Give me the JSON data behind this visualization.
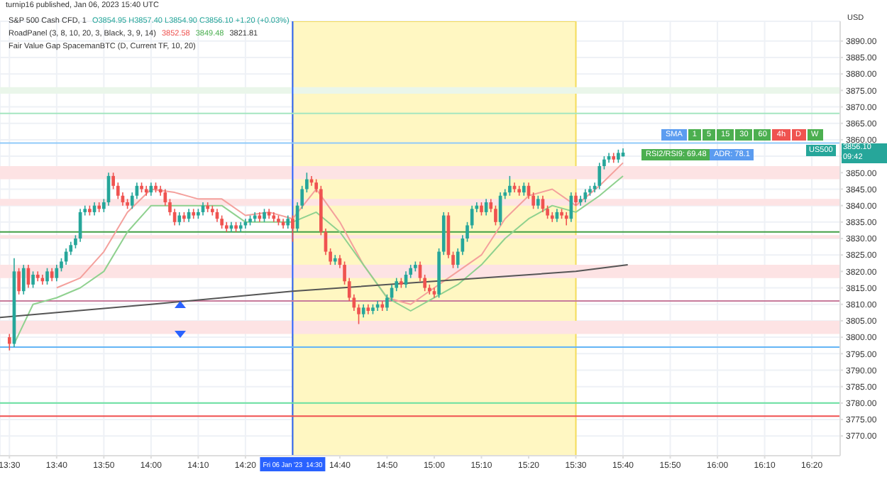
{
  "chart_data": {
    "type": "candlestick",
    "title": "S&P 500 Cash CFD, 1",
    "ylabel": "USD",
    "annotations": [
      "turnip16 published, Jan 06, 2023 15:40 UTC",
      "O3854.95 H3857.40 L3854.90 C3856.10 +1.20 (+0.03%)",
      "RoadPanel (3, 8, 10, 20, 3, Black, 3, 9, 14)",
      "3852.58",
      "3849.48",
      "3821.81",
      "Fair Value Gap SpacemanBTC (D, Current TF, 10, 20)",
      "SMA 1 5 15 30 60 4h D W",
      "RSI2/RSI9: 69.48",
      "ADR: 78.1",
      "US500",
      "3856.10",
      "09:42"
    ],
    "x": [
      "2023-01-06T13:30",
      "2023-01-06T13:31",
      "2023-01-06T13:32",
      "2023-01-06T13:33",
      "2023-01-06T13:34",
      "2023-01-06T13:35",
      "2023-01-06T13:36",
      "2023-01-06T13:37",
      "2023-01-06T13:38",
      "2023-01-06T13:39",
      "2023-01-06T13:40",
      "2023-01-06T13:41",
      "2023-01-06T13:42",
      "2023-01-06T13:43",
      "2023-01-06T13:44",
      "2023-01-06T13:45",
      "2023-01-06T13:46",
      "2023-01-06T13:47",
      "2023-01-06T13:48",
      "2023-01-06T13:49",
      "2023-01-06T13:50",
      "2023-01-06T13:51",
      "2023-01-06T13:52",
      "2023-01-06T13:53",
      "2023-01-06T13:54",
      "2023-01-06T13:55",
      "2023-01-06T13:56",
      "2023-01-06T13:57",
      "2023-01-06T13:58",
      "2023-01-06T13:59",
      "2023-01-06T14:00",
      "2023-01-06T14:01",
      "2023-01-06T14:02",
      "2023-01-06T14:03",
      "2023-01-06T14:04",
      "2023-01-06T14:05",
      "2023-01-06T14:06",
      "2023-01-06T14:07",
      "2023-01-06T14:08",
      "2023-01-06T14:09",
      "2023-01-06T14:10",
      "2023-01-06T14:11",
      "2023-01-06T14:12",
      "2023-01-06T14:13",
      "2023-01-06T14:14",
      "2023-01-06T14:15",
      "2023-01-06T14:16",
      "2023-01-06T14:17",
      "2023-01-06T14:18",
      "2023-01-06T14:19",
      "2023-01-06T14:20",
      "2023-01-06T14:21",
      "2023-01-06T14:22",
      "2023-01-06T14:23",
      "2023-01-06T14:24",
      "2023-01-06T14:25",
      "2023-01-06T14:26",
      "2023-01-06T14:27",
      "2023-01-06T14:28",
      "2023-01-06T14:29",
      "2023-01-06T14:30",
      "2023-01-06T14:31",
      "2023-01-06T14:32",
      "2023-01-06T14:33",
      "2023-01-06T14:34",
      "2023-01-06T14:35",
      "2023-01-06T14:36",
      "2023-01-06T14:37",
      "2023-01-06T14:38",
      "2023-01-06T14:39",
      "2023-01-06T14:40",
      "2023-01-06T14:41",
      "2023-01-06T14:42",
      "2023-01-06T14:43",
      "2023-01-06T14:44",
      "2023-01-06T14:45",
      "2023-01-06T14:46",
      "2023-01-06T14:47",
      "2023-01-06T14:48",
      "2023-01-06T14:49",
      "2023-01-06T14:50",
      "2023-01-06T14:51",
      "2023-01-06T14:52",
      "2023-01-06T14:53",
      "2023-01-06T14:54",
      "2023-01-06T14:55",
      "2023-01-06T14:56",
      "2023-01-06T14:57",
      "2023-01-06T14:58",
      "2023-01-06T14:59",
      "2023-01-06T15:00",
      "2023-01-06T15:01",
      "2023-01-06T15:02",
      "2023-01-06T15:03",
      "2023-01-06T15:04",
      "2023-01-06T15:05",
      "2023-01-06T15:06",
      "2023-01-06T15:07",
      "2023-01-06T15:08",
      "2023-01-06T15:09",
      "2023-01-06T15:10",
      "2023-01-06T15:11",
      "2023-01-06T15:12",
      "2023-01-06T15:13",
      "2023-01-06T15:14",
      "2023-01-06T15:15",
      "2023-01-06T15:16",
      "2023-01-06T15:17",
      "2023-01-06T15:18",
      "2023-01-06T15:19",
      "2023-01-06T15:20",
      "2023-01-06T15:21",
      "2023-01-06T15:22",
      "2023-01-06T15:23",
      "2023-01-06T15:24",
      "2023-01-06T15:25",
      "2023-01-06T15:26",
      "2023-01-06T15:27",
      "2023-01-06T15:28",
      "2023-01-06T15:29",
      "2023-01-06T15:30",
      "2023-01-06T15:31",
      "2023-01-06T15:32",
      "2023-01-06T15:33",
      "2023-01-06T15:34",
      "2023-01-06T15:35",
      "2023-01-06T15:36",
      "2023-01-06T15:37",
      "2023-01-06T15:38",
      "2023-01-06T15:39",
      "2023-01-06T15:40"
    ],
    "ohlc": [
      [
        3800,
        3801,
        3796,
        3798
      ],
      [
        3798,
        3824,
        3797,
        3820
      ],
      [
        3820,
        3821,
        3813,
        3814
      ],
      [
        3814,
        3822,
        3813,
        3821
      ],
      [
        3821,
        3822,
        3815,
        3816
      ],
      [
        3816,
        3820,
        3815,
        3819
      ],
      [
        3819,
        3820,
        3817,
        3818
      ],
      [
        3818,
        3819,
        3816,
        3817
      ],
      [
        3817,
        3821,
        3816,
        3820
      ],
      [
        3820,
        3821,
        3817,
        3818
      ],
      [
        3818,
        3822,
        3817,
        3821
      ],
      [
        3821,
        3824,
        3820,
        3823
      ],
      [
        3823,
        3827,
        3822,
        3826
      ],
      [
        3826,
        3829,
        3825,
        3828
      ],
      [
        3828,
        3831,
        3827,
        3830
      ],
      [
        3830,
        3839,
        3829,
        3838
      ],
      [
        3838,
        3840,
        3837,
        3839
      ],
      [
        3839,
        3840,
        3837,
        3838
      ],
      [
        3838,
        3841,
        3837,
        3840
      ],
      [
        3840,
        3841,
        3838,
        3839
      ],
      [
        3839,
        3842,
        3838,
        3841
      ],
      [
        3841,
        3850,
        3840,
        3849
      ],
      [
        3849,
        3850,
        3845,
        3846
      ],
      [
        3846,
        3847,
        3842,
        3843
      ],
      [
        3843,
        3844,
        3840,
        3841
      ],
      [
        3841,
        3842,
        3839,
        3840
      ],
      [
        3840,
        3844,
        3839,
        3843
      ],
      [
        3843,
        3847,
        3842,
        3846
      ],
      [
        3846,
        3847,
        3844,
        3845
      ],
      [
        3845,
        3846,
        3843,
        3844
      ],
      [
        3844,
        3847,
        3843,
        3846
      ],
      [
        3846,
        3847,
        3844,
        3845
      ],
      [
        3845,
        3846,
        3843,
        3844
      ],
      [
        3844,
        3845,
        3840,
        3841
      ],
      [
        3841,
        3842,
        3837,
        3838
      ],
      [
        3838,
        3839,
        3834,
        3835
      ],
      [
        3835,
        3838,
        3834,
        3837
      ],
      [
        3837,
        3838,
        3835,
        3836
      ],
      [
        3836,
        3839,
        3835,
        3838
      ],
      [
        3838,
        3839,
        3836,
        3837
      ],
      [
        3837,
        3839,
        3836,
        3838
      ],
      [
        3838,
        3841,
        3837,
        3840
      ],
      [
        3840,
        3841,
        3838,
        3839
      ],
      [
        3839,
        3840,
        3837,
        3838
      ],
      [
        3838,
        3839,
        3835,
        3836
      ],
      [
        3836,
        3837,
        3833,
        3834
      ],
      [
        3834,
        3835,
        3832,
        3833
      ],
      [
        3833,
        3835,
        3832,
        3834
      ],
      [
        3834,
        3835,
        3832,
        3833
      ],
      [
        3833,
        3835,
        3832,
        3834
      ],
      [
        3834,
        3836,
        3833,
        3835
      ],
      [
        3835,
        3837,
        3834,
        3836
      ],
      [
        3836,
        3838,
        3835,
        3837
      ],
      [
        3837,
        3838,
        3835,
        3836
      ],
      [
        3836,
        3839,
        3835,
        3838
      ],
      [
        3838,
        3839,
        3836,
        3837
      ],
      [
        3837,
        3838,
        3835,
        3836
      ],
      [
        3836,
        3837,
        3834,
        3835
      ],
      [
        3835,
        3836,
        3833,
        3834
      ],
      [
        3834,
        3837,
        3833,
        3836
      ],
      [
        3836,
        3837,
        3829,
        3833
      ],
      [
        3833,
        3841,
        3832,
        3840
      ],
      [
        3840,
        3846,
        3839,
        3845
      ],
      [
        3845,
        3850,
        3844,
        3848
      ],
      [
        3848,
        3849,
        3846,
        3847
      ],
      [
        3847,
        3848,
        3844,
        3845
      ],
      [
        3845,
        3846,
        3831,
        3832
      ],
      [
        3832,
        3833,
        3825,
        3826
      ],
      [
        3826,
        3827,
        3822,
        3823
      ],
      [
        3823,
        3825,
        3822,
        3824
      ],
      [
        3824,
        3825,
        3821,
        3822
      ],
      [
        3822,
        3823,
        3816,
        3817
      ],
      [
        3817,
        3818,
        3811,
        3812
      ],
      [
        3812,
        3813,
        3808,
        3809
      ],
      [
        3809,
        3810,
        3804,
        3807
      ],
      [
        3807,
        3810,
        3806,
        3809
      ],
      [
        3809,
        3810,
        3807,
        3808
      ],
      [
        3808,
        3810,
        3807,
        3809
      ],
      [
        3809,
        3811,
        3808,
        3810
      ],
      [
        3810,
        3811,
        3808,
        3809
      ],
      [
        3809,
        3813,
        3808,
        3812
      ],
      [
        3812,
        3816,
        3811,
        3815
      ],
      [
        3815,
        3818,
        3814,
        3817
      ],
      [
        3817,
        3818,
        3815,
        3816
      ],
      [
        3816,
        3820,
        3815,
        3819
      ],
      [
        3819,
        3822,
        3818,
        3821
      ],
      [
        3821,
        3823,
        3820,
        3822
      ],
      [
        3822,
        3823,
        3817,
        3818
      ],
      [
        3818,
        3819,
        3814,
        3815
      ],
      [
        3815,
        3816,
        3813,
        3814
      ],
      [
        3814,
        3815,
        3812,
        3813
      ],
      [
        3813,
        3827,
        3812,
        3826
      ],
      [
        3826,
        3838,
        3825,
        3837
      ],
      [
        3837,
        3838,
        3824,
        3825
      ],
      [
        3825,
        3826,
        3821,
        3822
      ],
      [
        3822,
        3827,
        3821,
        3826
      ],
      [
        3826,
        3831,
        3825,
        3830
      ],
      [
        3830,
        3835,
        3829,
        3834
      ],
      [
        3834,
        3840,
        3833,
        3839
      ],
      [
        3839,
        3841,
        3838,
        3840
      ],
      [
        3840,
        3841,
        3837,
        3838
      ],
      [
        3838,
        3842,
        3837,
        3841
      ],
      [
        3841,
        3842,
        3838,
        3839
      ],
      [
        3839,
        3840,
        3834,
        3835
      ],
      [
        3835,
        3844,
        3834,
        3843
      ],
      [
        3843,
        3845,
        3842,
        3844
      ],
      [
        3844,
        3849,
        3843,
        3846
      ],
      [
        3846,
        3847,
        3844,
        3845
      ],
      [
        3845,
        3846,
        3843,
        3844
      ],
      [
        3844,
        3847,
        3843,
        3846
      ],
      [
        3846,
        3847,
        3842,
        3843
      ],
      [
        3843,
        3844,
        3839,
        3840
      ],
      [
        3840,
        3843,
        3839,
        3842
      ],
      [
        3842,
        3843,
        3838,
        3839
      ],
      [
        3839,
        3840,
        3836,
        3837
      ],
      [
        3837,
        3838,
        3835,
        3836
      ],
      [
        3836,
        3839,
        3835,
        3838
      ],
      [
        3838,
        3839,
        3836,
        3837
      ],
      [
        3837,
        3838,
        3834,
        3836
      ],
      [
        3836,
        3844,
        3835,
        3843
      ],
      [
        3843,
        3844,
        3840,
        3841
      ],
      [
        3841,
        3843,
        3840,
        3842
      ],
      [
        3842,
        3845,
        3841,
        3844
      ],
      [
        3844,
        3846,
        3843,
        3845
      ],
      [
        3845,
        3847,
        3844,
        3846
      ],
      [
        3846,
        3853,
        3845,
        3852
      ],
      [
        3852,
        3855,
        3851,
        3854
      ],
      [
        3854,
        3856,
        3853,
        3855
      ],
      [
        3855,
        3856,
        3853,
        3854
      ],
      [
        3854,
        3857,
        3853,
        3856
      ],
      [
        3854.95,
        3857.4,
        3854.9,
        3856.1
      ]
    ],
    "series": [
      {
        "type": "line",
        "color": "#f4a09c",
        "x": [
          "2023-01-06T13:40",
          "2023-01-06T13:45",
          "2023-01-06T13:50",
          "2023-01-06T13:55",
          "2023-01-06T14:00",
          "2023-01-06T14:05",
          "2023-01-06T14:10",
          "2023-01-06T14:15",
          "2023-01-06T14:20",
          "2023-01-06T14:25",
          "2023-01-06T14:30",
          "2023-01-06T14:35",
          "2023-01-06T14:40",
          "2023-01-06T14:45",
          "2023-01-06T14:50",
          "2023-01-06T14:55",
          "2023-01-06T15:00",
          "2023-01-06T15:05",
          "2023-01-06T15:10",
          "2023-01-06T15:15",
          "2023-01-06T15:20",
          "2023-01-06T15:25",
          "2023-01-06T15:30",
          "2023-01-06T15:35",
          "2023-01-06T15:40"
        ],
        "values": [
          3815,
          3818,
          3826,
          3838,
          3845,
          3844,
          3842,
          3842,
          3837,
          3838,
          3836,
          3845,
          3835,
          3822,
          3812,
          3810,
          3815,
          3820,
          3825,
          3836,
          3843,
          3845,
          3840,
          3846,
          3853
        ]
      },
      {
        "type": "line",
        "color": "#8fd18f",
        "x": [
          "2023-01-06T13:31",
          "2023-01-06T13:35",
          "2023-01-06T13:40",
          "2023-01-06T13:45",
          "2023-01-06T13:50",
          "2023-01-06T13:55",
          "2023-01-06T14:00",
          "2023-01-06T14:05",
          "2023-01-06T14:10",
          "2023-01-06T14:15",
          "2023-01-06T14:20",
          "2023-01-06T14:25",
          "2023-01-06T14:30",
          "2023-01-06T14:35",
          "2023-01-06T14:40",
          "2023-01-06T14:45",
          "2023-01-06T14:50",
          "2023-01-06T14:55",
          "2023-01-06T15:00",
          "2023-01-06T15:05",
          "2023-01-06T15:10",
          "2023-01-06T15:15",
          "2023-01-06T15:20",
          "2023-01-06T15:25",
          "2023-01-06T15:30",
          "2023-01-06T15:35",
          "2023-01-06T15:40"
        ],
        "values": [
          3798,
          3810,
          3812,
          3815,
          3820,
          3832,
          3840,
          3840,
          3840,
          3840,
          3835,
          3835,
          3835,
          3838,
          3832,
          3822,
          3812,
          3808,
          3812,
          3816,
          3822,
          3830,
          3836,
          3840,
          3838,
          3843,
          3849
        ]
      },
      {
        "type": "line",
        "color": "#555555",
        "x": [
          "2023-01-06T13:28",
          "2023-01-06T14:00",
          "2023-01-06T14:30",
          "2023-01-06T15:00",
          "2023-01-06T15:30",
          "2023-01-06T15:41"
        ],
        "values": [
          3806,
          3810,
          3814,
          3817,
          3820,
          3822
        ]
      }
    ],
    "xlim": [
      "2023-01-06T13:28",
      "2023-01-06T16:26"
    ],
    "xticks": [
      {
        "value": "2023-01-06T13:30",
        "label": "13:30"
      },
      {
        "value": "2023-01-06T13:40",
        "label": "13:40"
      },
      {
        "value": "2023-01-06T13:50",
        "label": "13:50"
      },
      {
        "value": "2023-01-06T14:00",
        "label": "14:00"
      },
      {
        "value": "2023-01-06T14:10",
        "label": "14:10"
      },
      {
        "value": "2023-01-06T14:20",
        "label": "14:20"
      },
      {
        "value": "2023-01-06T14:40",
        "label": "14:40"
      },
      {
        "value": "2023-01-06T14:50",
        "label": "14:50"
      },
      {
        "value": "2023-01-06T15:00",
        "label": "15:00"
      },
      {
        "value": "2023-01-06T15:10",
        "label": "15:10"
      },
      {
        "value": "2023-01-06T15:20",
        "label": "15:20"
      },
      {
        "value": "2023-01-06T15:30",
        "label": "15:30"
      },
      {
        "value": "2023-01-06T15:40",
        "label": "15:40"
      },
      {
        "value": "2023-01-06T15:50",
        "label": "15:50"
      },
      {
        "value": "2023-01-06T16:00",
        "label": "16:00"
      },
      {
        "value": "2023-01-06T16:10",
        "label": "16:10"
      },
      {
        "value": "2023-01-06T16:20",
        "label": "16:20"
      }
    ],
    "ylim": [
      3764,
      3896
    ],
    "yticks": [
      {
        "value": 3770,
        "label": "3770.00"
      },
      {
        "value": 3775,
        "label": "3775.00"
      },
      {
        "value": 3780,
        "label": "3780.00"
      },
      {
        "value": 3785,
        "label": "3785.00"
      },
      {
        "value": 3790,
        "label": "3790.00"
      },
      {
        "value": 3795,
        "label": "3795.00"
      },
      {
        "value": 3800,
        "label": "3800.00"
      },
      {
        "value": 3805,
        "label": "3805.00"
      },
      {
        "value": 3810,
        "label": "3810.00"
      },
      {
        "value": 3815,
        "label": "3815.00"
      },
      {
        "value": 3820,
        "label": "3820.00"
      },
      {
        "value": 3825,
        "label": "3825.00"
      },
      {
        "value": 3830,
        "label": "3830.00"
      },
      {
        "value": 3835,
        "label": "3835.00"
      },
      {
        "value": 3840,
        "label": "3840.00"
      },
      {
        "value": 3845,
        "label": "3845.00"
      },
      {
        "value": 3850,
        "label": "3850.00"
      },
      {
        "value": 3855,
        "label": null
      },
      {
        "value": 3860,
        "label": "3860.00"
      },
      {
        "value": 3865,
        "label": "3865.00"
      },
      {
        "value": 3870,
        "label": "3870.00"
      },
      {
        "value": 3875,
        "label": "3875.00"
      },
      {
        "value": 3880,
        "label": "3880.00"
      },
      {
        "value": 3885,
        "label": "3885.00"
      },
      {
        "value": 3890,
        "label": "3890.00"
      }
    ],
    "ref_lines": [
      {
        "axis": "x",
        "value": "2023-01-06T14:30",
        "label": "Fri 06 Jan '23  14:30",
        "color": "#2962ff"
      },
      {
        "axis": "y",
        "value": 3859,
        "color": "#90caf9"
      },
      {
        "axis": "y",
        "value": 3797,
        "color": "#64b5f6"
      },
      {
        "axis": "y",
        "value": 3868,
        "color": "#a5e6c0"
      },
      {
        "axis": "y",
        "value": 3780,
        "color": "#69e0a0"
      },
      {
        "axis": "y",
        "value": 3811,
        "color": "#c77b9b"
      },
      {
        "axis": "y",
        "value": 3832,
        "color": "#43a047"
      },
      {
        "axis": "y",
        "value": 3776,
        "color": "#f05050"
      }
    ],
    "bands": [
      {
        "axis": "x",
        "from": "2023-01-06T14:30",
        "to": "2023-01-06T15:30",
        "color": "#fff7c2"
      },
      {
        "axis": "y",
        "from": 3848,
        "to": 3852,
        "color": "#fde3e4"
      },
      {
        "axis": "y",
        "from": 3840,
        "to": 3842,
        "color": "#fde3e4"
      },
      {
        "axis": "y",
        "from": 3830,
        "to": 3831,
        "color": "#fde3e4"
      },
      {
        "axis": "y",
        "from": 3818,
        "to": 3822,
        "color": "#fde3e4"
      },
      {
        "axis": "y",
        "from": 3801,
        "to": 3805,
        "color": "#fde3e4"
      },
      {
        "axis": "y",
        "from": 3874,
        "to": 3876,
        "color": "#eaf6ea"
      }
    ],
    "grid": true,
    "legend": false
  }
}
